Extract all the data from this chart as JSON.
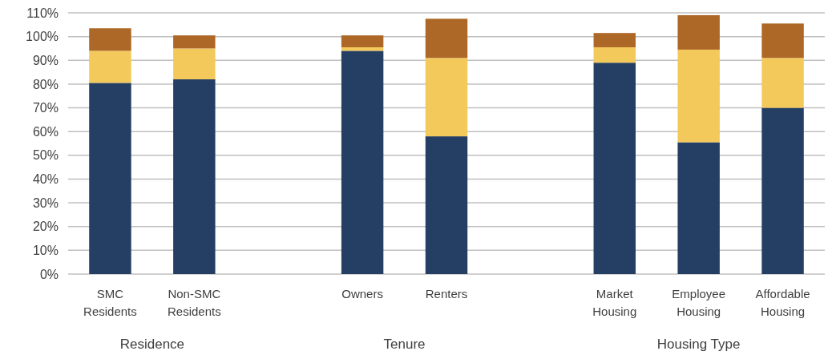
{
  "chart_data": {
    "type": "bar",
    "stacked": true,
    "grid": "y",
    "categories": [
      "SMC Residents",
      "Non-SMC Residents",
      null,
      "Owners",
      "Renters",
      null,
      "Market Housing",
      "Employee Housing",
      "Affordable Housing"
    ],
    "series": [
      {
        "color": "#243f63",
        "values": [
          80.5,
          82,
          null,
          94,
          58,
          null,
          89,
          55.5,
          70
        ]
      },
      {
        "color": "#f3c95c",
        "values": [
          13.5,
          13,
          null,
          1.5,
          33,
          null,
          6.5,
          39,
          21
        ]
      },
      {
        "color": "#ad6726",
        "values": [
          9.5,
          5.5,
          null,
          5,
          16.5,
          null,
          6,
          14.5,
          14.5
        ]
      }
    ],
    "ylim": [
      0,
      110
    ],
    "yticks": [
      {
        "value": 0,
        "label": "0%"
      },
      {
        "value": 10,
        "label": "10%"
      },
      {
        "value": 20,
        "label": "20%"
      },
      {
        "value": 30,
        "label": "30%"
      },
      {
        "value": 40,
        "label": "40%"
      },
      {
        "value": 50,
        "label": "50%"
      },
      {
        "value": 60,
        "label": "60%"
      },
      {
        "value": 70,
        "label": "70%"
      },
      {
        "value": 80,
        "label": "80%"
      },
      {
        "value": 90,
        "label": "90%"
      },
      {
        "value": 100,
        "label": "100%"
      },
      {
        "value": 110,
        "label": "110%"
      }
    ],
    "annotations": [
      "Residence",
      "Tenure",
      "Housing Type"
    ]
  }
}
